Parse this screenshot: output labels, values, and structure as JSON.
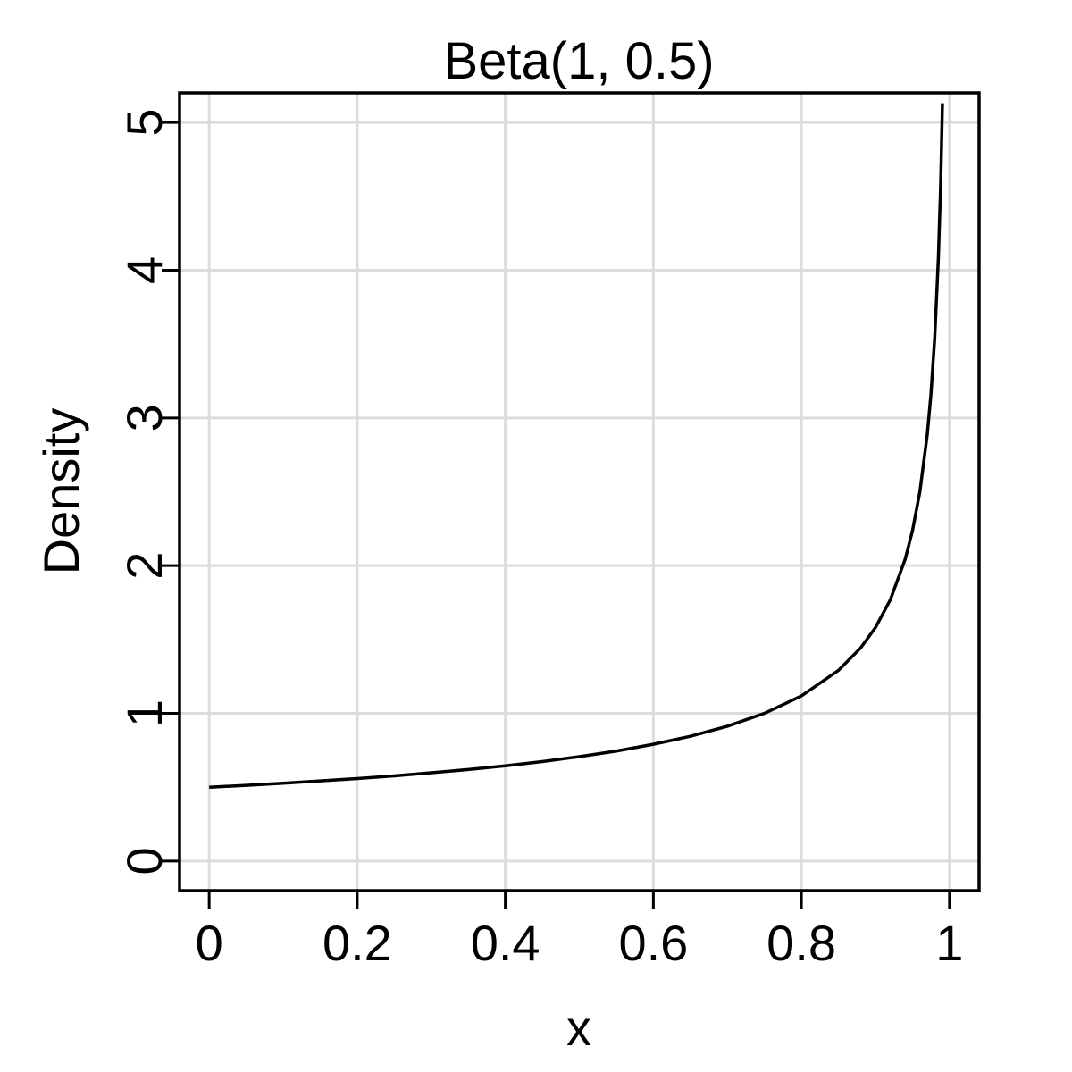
{
  "chart_data": {
    "type": "line",
    "title": "Beta(1, 0.5)",
    "xlabel": "x",
    "ylabel": "Density",
    "xlim": [
      -0.04,
      1.04
    ],
    "ylim": [
      -0.2,
      5.2
    ],
    "x_ticks": [
      0,
      0.2,
      0.4,
      0.6,
      0.8,
      1
    ],
    "x_tick_labels": [
      "0",
      "0.2",
      "0.4",
      "0.6",
      "0.8",
      "1"
    ],
    "y_ticks": [
      0,
      1,
      2,
      3,
      4,
      5
    ],
    "y_tick_labels": [
      "0",
      "1",
      "2",
      "3",
      "4",
      "5"
    ],
    "grid": true,
    "series": [
      {
        "color": "#000000",
        "x": [
          0,
          0.05,
          0.1,
          0.15,
          0.2,
          0.25,
          0.3,
          0.35,
          0.4,
          0.45,
          0.5,
          0.55,
          0.6,
          0.65,
          0.7,
          0.75,
          0.8,
          0.85,
          0.88,
          0.9,
          0.92,
          0.94,
          0.95,
          0.96,
          0.97,
          0.975,
          0.98,
          0.985,
          0.988,
          0.9905
        ],
        "y": [
          0.5,
          0.513,
          0.527,
          0.543,
          0.559,
          0.577,
          0.598,
          0.62,
          0.645,
          0.674,
          0.707,
          0.745,
          0.791,
          0.845,
          0.913,
          1.0,
          1.118,
          1.291,
          1.443,
          1.581,
          1.768,
          2.041,
          2.236,
          2.5,
          2.887,
          3.162,
          3.536,
          4.082,
          4.564,
          5.13
        ]
      }
    ]
  }
}
